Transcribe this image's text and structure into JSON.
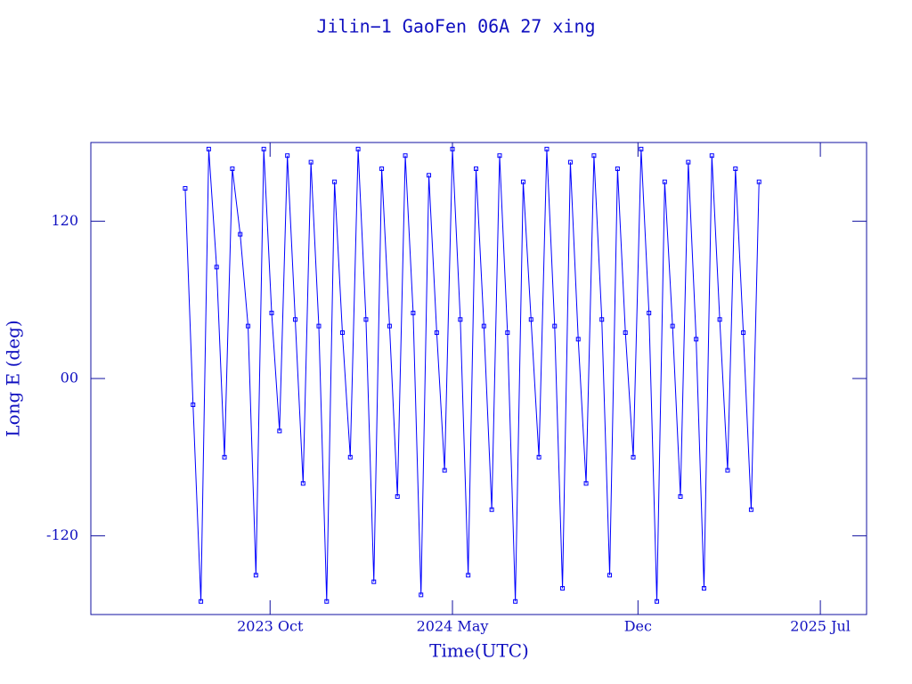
{
  "chart_data": {
    "type": "line",
    "title": "Jilin−1 GaoFen 06A 27 xing",
    "x_label": "Time(UTC)",
    "y_label": "Long E (deg)",
    "xlim": [
      2023.18,
      2025.647
    ],
    "xticks": [
      {
        "value": 2023.75,
        "label": "2023 Oct"
      },
      {
        "value": 2024.33,
        "label": "2024 May"
      },
      {
        "value": 2024.92,
        "label": "Dec"
      },
      {
        "value": 2025.5,
        "label": "2025 Jul"
      }
    ],
    "ylim": [
      -180,
      180
    ],
    "yticks": [
      -120,
      {
        "value": 0,
        "label": "00"
      },
      120
    ],
    "x": [
      2023.48,
      2023.505,
      2023.53,
      2023.555,
      2023.58,
      2023.605,
      2023.63,
      2023.655,
      2023.68,
      2023.705,
      2023.73,
      2023.755,
      2023.78,
      2023.805,
      2023.83,
      2023.855,
      2023.88,
      2023.905,
      2023.93,
      2023.955,
      2023.98,
      2024.005,
      2024.03,
      2024.055,
      2024.08,
      2024.105,
      2024.13,
      2024.155,
      2024.18,
      2024.205,
      2024.23,
      2024.255,
      2024.28,
      2024.305,
      2024.33,
      2024.355,
      2024.38,
      2024.405,
      2024.43,
      2024.455,
      2024.48,
      2024.505,
      2024.53,
      2024.555,
      2024.58,
      2024.605,
      2024.63,
      2024.655,
      2024.68,
      2024.705,
      2024.73,
      2024.755,
      2024.78,
      2024.805,
      2024.83,
      2024.855,
      2024.88,
      2024.905,
      2024.93,
      2024.955,
      2024.98,
      2025.005,
      2025.03,
      2025.055,
      2025.08,
      2025.105,
      2025.13,
      2025.155,
      2025.18,
      2025.205,
      2025.23,
      2025.255,
      2025.28,
      2025.305
    ],
    "series": [
      {
        "name": "Long E",
        "color": "#0000ff",
        "values": [
          145,
          -20,
          -170,
          175,
          85,
          -60,
          160,
          110,
          40,
          -150,
          175,
          50,
          -40,
          170,
          45,
          -80,
          165,
          40,
          -170,
          150,
          35,
          -60,
          175,
          45,
          -155,
          160,
          40,
          -90,
          170,
          50,
          -165,
          155,
          35,
          -70,
          175,
          45,
          -150,
          160,
          40,
          -100,
          170,
          35,
          -170,
          150,
          45,
          -60,
          175,
          40,
          -160,
          165,
          30,
          -80,
          170,
          45,
          -150,
          160,
          35,
          -60,
          175,
          50,
          -170,
          150,
          40,
          -90,
          165,
          30,
          -160,
          170,
          45,
          -70,
          160,
          35,
          -100,
          150
        ]
      }
    ]
  }
}
